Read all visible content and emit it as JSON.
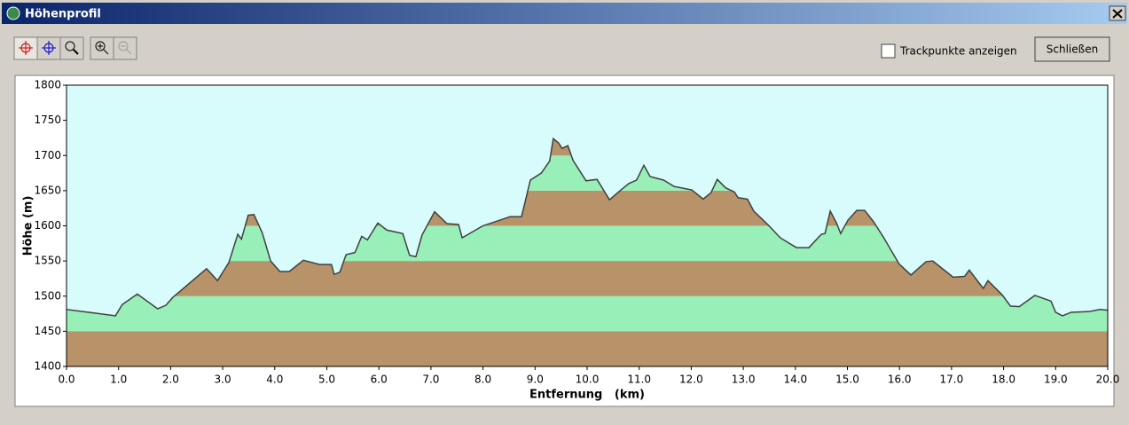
{
  "window": {
    "title": "Höhenprofil",
    "checkbox_label": "Trackpunkte anzeigen",
    "close_button": "Schließen"
  },
  "chart_data": {
    "type": "area",
    "xlabel": "Entfernung   (km)",
    "ylabel": "Höhe (m)",
    "x": [
      0,
      0.43,
      0.94,
      1.07,
      1.36,
      1.75,
      1.91,
      2.04,
      2.69,
      2.9,
      3.12,
      3.29,
      3.36,
      3.49,
      3.6,
      3.76,
      3.92,
      4.1,
      4.28,
      4.55,
      4.86,
      5.09,
      5.14,
      5.25,
      5.37,
      5.54,
      5.67,
      5.78,
      5.98,
      6.15,
      6.46,
      6.59,
      6.71,
      6.83,
      7.07,
      7.31,
      7.53,
      7.6,
      8.0,
      8.52,
      8.74,
      8.91,
      9.12,
      9.28,
      9.35,
      9.45,
      9.52,
      9.63,
      9.73,
      9.98,
      10.19,
      10.43,
      10.65,
      10.8,
      10.95,
      11.09,
      11.21,
      11.47,
      11.67,
      12.01,
      12.23,
      12.38,
      12.5,
      12.66,
      12.83,
      12.9,
      13.08,
      13.2,
      13.48,
      13.71,
      14.02,
      14.26,
      14.5,
      14.57,
      14.67,
      14.79,
      14.87,
      15.01,
      15.18,
      15.33,
      15.5,
      15.69,
      15.99,
      16.22,
      16.51,
      16.64,
      17.03,
      17.25,
      17.34,
      17.61,
      17.7,
      17.97,
      18.13,
      18.3,
      18.6,
      18.91,
      19.0,
      19.13,
      19.3,
      19.64,
      19.85,
      20.0
    ],
    "values": [
      1481,
      1477,
      1472,
      1488,
      1503,
      1482,
      1487,
      1498,
      1539,
      1522,
      1548,
      1588,
      1581,
      1615,
      1616,
      1590,
      1550,
      1535,
      1535,
      1551,
      1545,
      1545,
      1531,
      1534,
      1559,
      1562,
      1585,
      1580,
      1604,
      1594,
      1589,
      1558,
      1556,
      1587,
      1620,
      1603,
      1602,
      1583,
      1600,
      1613,
      1613,
      1665,
      1675,
      1692,
      1724,
      1718,
      1710,
      1714,
      1693,
      1664,
      1666,
      1637,
      1651,
      1660,
      1665,
      1686,
      1670,
      1665,
      1656,
      1651,
      1638,
      1647,
      1666,
      1654,
      1648,
      1640,
      1638,
      1621,
      1601,
      1583,
      1569,
      1569,
      1588,
      1589,
      1621,
      1604,
      1589,
      1608,
      1622,
      1622,
      1606,
      1584,
      1546,
      1530,
      1549,
      1550,
      1527,
      1528,
      1537,
      1511,
      1522,
      1502,
      1486,
      1485,
      1501,
      1493,
      1477,
      1472,
      1477,
      1478,
      1481,
      1480
    ],
    "xlim": [
      0,
      20
    ],
    "ylim": [
      1400,
      1800
    ],
    "xticks": [
      {
        "value": 0,
        "label": "0.0"
      },
      {
        "value": 1,
        "label": "1.0"
      },
      {
        "value": 2,
        "label": "2.0"
      },
      {
        "value": 3,
        "label": "3.0"
      },
      {
        "value": 4,
        "label": "4.0"
      },
      {
        "value": 5,
        "label": "5.0"
      },
      {
        "value": 6,
        "label": "6.0"
      },
      {
        "value": 7,
        "label": "7.0"
      },
      {
        "value": 8,
        "label": "8.0"
      },
      {
        "value": 9,
        "label": "9.0"
      },
      {
        "value": 10,
        "label": "10.0"
      },
      {
        "value": 11,
        "label": "11.0"
      },
      {
        "value": 12,
        "label": "12.0"
      },
      {
        "value": 13,
        "label": "13.0"
      },
      {
        "value": 14,
        "label": "14.0"
      },
      {
        "value": 15,
        "label": "15.0"
      },
      {
        "value": 16,
        "label": "16.0"
      },
      {
        "value": 17,
        "label": "17.0"
      },
      {
        "value": 18,
        "label": "18.0"
      },
      {
        "value": 19,
        "label": "19.0"
      },
      {
        "value": 20,
        "label": "20.0"
      }
    ],
    "yticks": [
      1400,
      1450,
      1500,
      1550,
      1600,
      1650,
      1700,
      1750,
      1800
    ],
    "band_colors": [
      "#b89268",
      "#98f0b8"
    ],
    "background": "#d8fcfc",
    "line_color": "#404040"
  }
}
